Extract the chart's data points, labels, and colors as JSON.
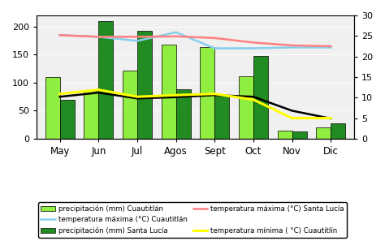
{
  "months": [
    "May",
    "Jun",
    "Jul",
    "Agos",
    "Sept",
    "Oct",
    "Nov",
    "Dic"
  ],
  "precip_cuautitlan": [
    110,
    85,
    122,
    168,
    163,
    112,
    15,
    20
  ],
  "precip_santa_lucia": [
    70,
    210,
    193,
    88,
    78,
    148,
    13,
    27
  ],
  "temp_max_cuautitlan": [
    25.2,
    24.8,
    23.8,
    25.9,
    22.0,
    22.0,
    22.2,
    22.2
  ],
  "temp_max_santa_lucia": [
    25.2,
    24.8,
    24.8,
    24.9,
    24.5,
    23.4,
    22.7,
    22.5
  ],
  "temp_min_cuautitlan": [
    10.9,
    11.9,
    10.2,
    10.6,
    10.9,
    9.5,
    5.0,
    5.0
  ],
  "temp_min_black": [
    10.2,
    11.2,
    9.8,
    10.1,
    10.6,
    10.2,
    6.8,
    4.9
  ],
  "bar_color_cuautitlan": "#90EE40",
  "bar_color_santa_lucia": "#228B22",
  "color_temp_max_cuautitlan": "#87CEEB",
  "color_temp_max_santa_lucia": "#FF8080",
  "color_temp_min_cuautitlan": "#FFFF00",
  "color_temp_min_black": "#000000",
  "ylim_left": [
    0,
    220
  ],
  "ylim_right": [
    0,
    30
  ],
  "right_ticks": [
    0,
    5,
    10,
    15,
    20,
    25,
    30
  ],
  "left_ticks": [
    0,
    50,
    100,
    150,
    200
  ],
  "legend_labels": [
    "precipitación (mm) Cuautitlán",
    "precipitación (mm) Santa Lucía",
    "temperatura máxima (°C) Cuautitlán",
    "temperatura máxima (°C) Santa Lucía",
    "temperatura mínima ( °C) Cuautitlín"
  ],
  "bg_color": "#f0f0f0"
}
